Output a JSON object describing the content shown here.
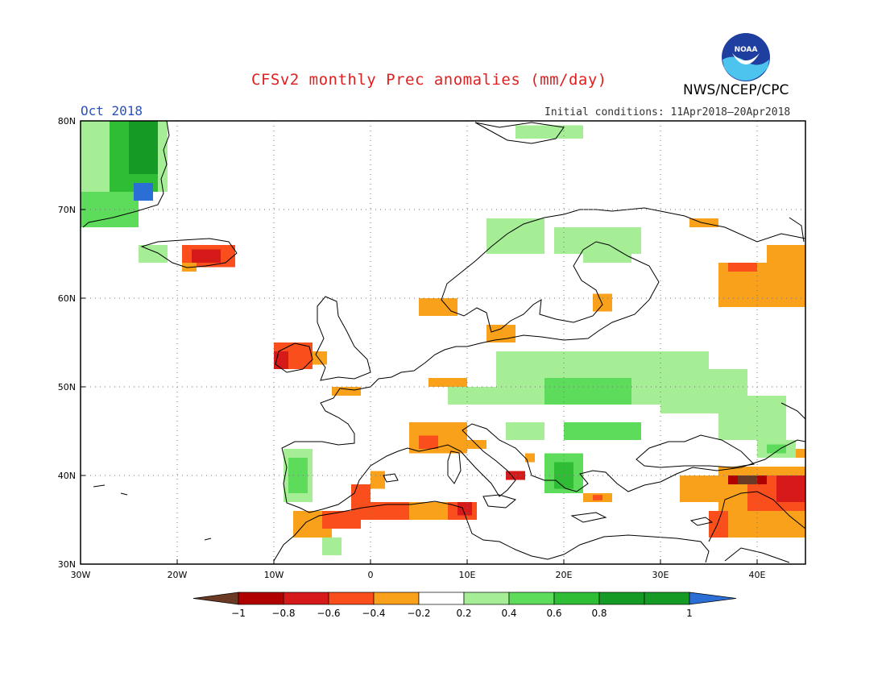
{
  "title": "CFSv2 monthly Prec anomalies (mm/day)",
  "agency": "NWS/NCEP/CPC",
  "logo_text": "NOAA",
  "month_label": "Oct 2018",
  "initial_conditions": "Initial conditions: 11Apr2018–20Apr2018",
  "map": {
    "lon_range": [
      -30,
      45
    ],
    "lat_range": [
      30,
      80
    ],
    "lon_ticks": [
      {
        "lon": -30,
        "label": "30W"
      },
      {
        "lon": -20,
        "label": "20W"
      },
      {
        "lon": -10,
        "label": "10W"
      },
      {
        "lon": 0,
        "label": "0"
      },
      {
        "lon": 10,
        "label": "10E"
      },
      {
        "lon": 20,
        "label": "20E"
      },
      {
        "lon": 30,
        "label": "30E"
      },
      {
        "lon": 40,
        "label": "40E"
      }
    ],
    "lat_ticks": [
      {
        "lat": 30,
        "label": "30N"
      },
      {
        "lat": 40,
        "label": "40N"
      },
      {
        "lat": 50,
        "label": "50N"
      },
      {
        "lat": 60,
        "label": "60N"
      },
      {
        "lat": 70,
        "label": "70N"
      },
      {
        "lat": 80,
        "label": "80N"
      }
    ],
    "bins": {
      "-1.2": "#6b3a25",
      "-0.9": "#b00000",
      "-0.7": "#d61a1a",
      "-0.5": "#fa4e1c",
      "-0.3": "#f9a11a",
      "0.3": "#a5ee95",
      "0.5": "#5cdc5a",
      "0.7": "#2fbd35",
      "0.9": "#159a25",
      "1.2": "#2b6fd6"
    },
    "anomalies": [
      {
        "lon": [
          -30,
          -21
        ],
        "lat": [
          72,
          80
        ],
        "value": 0.3
      },
      {
        "lon": [
          -30,
          -24
        ],
        "lat": [
          68,
          72
        ],
        "value": 0.5
      },
      {
        "lon": [
          -27,
          -22
        ],
        "lat": [
          72,
          80
        ],
        "value": 0.7
      },
      {
        "lon": [
          -25,
          -22
        ],
        "lat": [
          74,
          80
        ],
        "value": 0.9
      },
      {
        "lon": [
          -24.5,
          -22.5
        ],
        "lat": [
          71,
          73
        ],
        "value": 1.2
      },
      {
        "lon": [
          -24,
          -21
        ],
        "lat": [
          64,
          66
        ],
        "value": 0.3
      },
      {
        "lon": [
          -19.5,
          -14
        ],
        "lat": [
          63.5,
          66
        ],
        "value": -0.5
      },
      {
        "lon": [
          -18.5,
          -15.5
        ],
        "lat": [
          64,
          65.5
        ],
        "value": -0.7
      },
      {
        "lon": [
          -19.5,
          -18
        ],
        "lat": [
          63,
          64
        ],
        "value": -0.3
      },
      {
        "lon": [
          -10,
          -6
        ],
        "lat": [
          52,
          55
        ],
        "value": -0.5
      },
      {
        "lon": [
          -10,
          -8.5
        ],
        "lat": [
          52,
          54
        ],
        "value": -0.7
      },
      {
        "lon": [
          -6,
          -4.5
        ],
        "lat": [
          52.5,
          54
        ],
        "value": -0.3
      },
      {
        "lon": [
          -9,
          -6
        ],
        "lat": [
          37,
          43
        ],
        "value": 0.3
      },
      {
        "lon": [
          -8.5,
          -6.5
        ],
        "lat": [
          38,
          42
        ],
        "value": 0.5
      },
      {
        "lon": [
          -8,
          -4
        ],
        "lat": [
          33,
          36
        ],
        "value": -0.3
      },
      {
        "lon": [
          -5,
          -1
        ],
        "lat": [
          34,
          36
        ],
        "value": -0.5
      },
      {
        "lon": [
          -1,
          4
        ],
        "lat": [
          35,
          37
        ],
        "value": -0.5
      },
      {
        "lon": [
          4,
          10
        ],
        "lat": [
          35,
          37
        ],
        "value": -0.3
      },
      {
        "lon": [
          8,
          11
        ],
        "lat": [
          35,
          37
        ],
        "value": -0.5
      },
      {
        "lon": [
          9,
          10.5
        ],
        "lat": [
          35.5,
          37
        ],
        "value": -0.7
      },
      {
        "lon": [
          -2,
          0
        ],
        "lat": [
          36,
          39
        ],
        "value": -0.5
      },
      {
        "lon": [
          0,
          1.5
        ],
        "lat": [
          38.5,
          40.5
        ],
        "value": -0.3
      },
      {
        "lon": [
          -5,
          -3
        ],
        "lat": [
          31,
          33
        ],
        "value": 0.3
      },
      {
        "lon": [
          4,
          10
        ],
        "lat": [
          42.5,
          46
        ],
        "value": -0.3
      },
      {
        "lon": [
          5,
          7
        ],
        "lat": [
          43,
          44.5
        ],
        "value": -0.5
      },
      {
        "lon": [
          10,
          12
        ],
        "lat": [
          43,
          44
        ],
        "value": -0.3
      },
      {
        "lon": [
          -4,
          -1
        ],
        "lat": [
          49,
          50
        ],
        "value": -0.3
      },
      {
        "lon": [
          6,
          10
        ],
        "lat": [
          50,
          51
        ],
        "value": -0.3
      },
      {
        "lon": [
          8,
          13
        ],
        "lat": [
          48,
          50
        ],
        "value": 0.3
      },
      {
        "lon": [
          13,
          35
        ],
        "lat": [
          48,
          54
        ],
        "value": 0.3
      },
      {
        "lon": [
          18,
          27
        ],
        "lat": [
          48,
          51
        ],
        "value": 0.5
      },
      {
        "lon": [
          20,
          28
        ],
        "lat": [
          44,
          46
        ],
        "value": 0.5
      },
      {
        "lon": [
          14,
          18
        ],
        "lat": [
          44,
          46
        ],
        "value": 0.3
      },
      {
        "lon": [
          18,
          22
        ],
        "lat": [
          38,
          42.5
        ],
        "value": 0.5
      },
      {
        "lon": [
          19,
          21
        ],
        "lat": [
          38.5,
          41.5
        ],
        "value": 0.7
      },
      {
        "lon": [
          22,
          25
        ],
        "lat": [
          37,
          38
        ],
        "value": -0.3
      },
      {
        "lon": [
          23,
          24
        ],
        "lat": [
          37.2,
          37.8
        ],
        "value": -0.5
      },
      {
        "lon": [
          14,
          16
        ],
        "lat": [
          39.5,
          40.5
        ],
        "value": -0.7
      },
      {
        "lon": [
          16,
          17
        ],
        "lat": [
          41.5,
          42.5
        ],
        "value": -0.3
      },
      {
        "lon": [
          30,
          39
        ],
        "lat": [
          47,
          52
        ],
        "value": 0.3
      },
      {
        "lon": [
          36,
          43
        ],
        "lat": [
          44,
          49
        ],
        "value": 0.3
      },
      {
        "lon": [
          40,
          44
        ],
        "lat": [
          42,
          44
        ],
        "value": 0.3
      },
      {
        "lon": [
          41,
          43
        ],
        "lat": [
          42.5,
          43.5
        ],
        "value": 0.5
      },
      {
        "lon": [
          19,
          28
        ],
        "lat": [
          65,
          68
        ],
        "value": 0.3
      },
      {
        "lon": [
          22,
          27
        ],
        "lat": [
          64,
          66
        ],
        "value": 0.3
      },
      {
        "lon": [
          12,
          18
        ],
        "lat": [
          65,
          69
        ],
        "value": 0.3
      },
      {
        "lon": [
          15,
          22
        ],
        "lat": [
          78,
          79.5
        ],
        "value": 0.3
      },
      {
        "lon": [
          5,
          9
        ],
        "lat": [
          58,
          60
        ],
        "value": -0.3
      },
      {
        "lon": [
          12,
          15
        ],
        "lat": [
          55,
          57
        ],
        "value": -0.3
      },
      {
        "lon": [
          23,
          25
        ],
        "lat": [
          58.5,
          60.5
        ],
        "value": -0.3
      },
      {
        "lon": [
          36,
          45
        ],
        "lat": [
          59,
          64
        ],
        "value": -0.3
      },
      {
        "lon": [
          41,
          45
        ],
        "lat": [
          63,
          66
        ],
        "value": -0.3
      },
      {
        "lon": [
          37,
          40
        ],
        "lat": [
          63,
          64
        ],
        "value": -0.5
      },
      {
        "lon": [
          33,
          36
        ],
        "lat": [
          68,
          69
        ],
        "value": -0.3
      },
      {
        "lon": [
          32,
          37
        ],
        "lat": [
          37,
          40
        ],
        "value": -0.3
      },
      {
        "lon": [
          36,
          45
        ],
        "lat": [
          33,
          41
        ],
        "value": -0.3
      },
      {
        "lon": [
          39,
          45
        ],
        "lat": [
          36,
          40
        ],
        "value": -0.5
      },
      {
        "lon": [
          42,
          45
        ],
        "lat": [
          37,
          40
        ],
        "value": -0.7
      },
      {
        "lon": [
          37,
          41
        ],
        "lat": [
          39,
          40
        ],
        "value": -0.9
      },
      {
        "lon": [
          38,
          40
        ],
        "lat": [
          39,
          40
        ],
        "value": -1.2
      },
      {
        "lon": [
          35,
          37
        ],
        "lat": [
          33,
          36
        ],
        "value": -0.5
      },
      {
        "lon": [
          44,
          45
        ],
        "lat": [
          42,
          43
        ],
        "value": -0.3
      }
    ]
  },
  "colorbar": {
    "colors": [
      "#6b3a25",
      "#b00000",
      "#d61a1a",
      "#fa4e1c",
      "#f9a11a",
      "#ffffff",
      "#a5ee95",
      "#5cdc5a",
      "#2fbd35",
      "#159a25",
      "#159a25",
      "#2b6fd6"
    ],
    "tick_labels": [
      "−1",
      "−0.8",
      "−0.6",
      "−0.4",
      "−0.2",
      "0.2",
      "0.4",
      "0.6",
      "0.8",
      "1"
    ]
  }
}
